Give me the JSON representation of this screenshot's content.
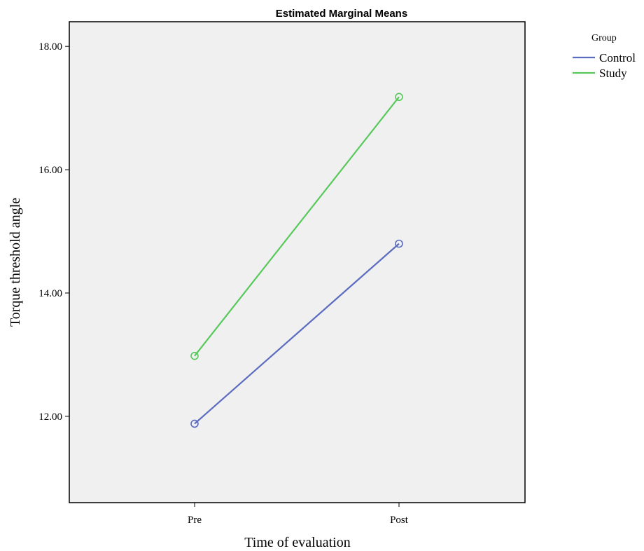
{
  "chart_data": {
    "type": "line",
    "title": "Estimated Marginal Means",
    "xlabel": "Time of evaluation",
    "ylabel": "Torque threshold angle",
    "categories": [
      "Pre",
      "Post"
    ],
    "ylim": [
      10.6,
      18.4
    ],
    "yticks": [
      12.0,
      14.0,
      16.0,
      18.0
    ],
    "ytick_labels": [
      "12.00",
      "14.00",
      "16.00",
      "18.00"
    ],
    "grid": false,
    "legend": {
      "title": "Group",
      "placement": "right"
    },
    "series": [
      {
        "name": "Control",
        "values": [
          11.88,
          14.8
        ],
        "color": "#5b6bbf"
      },
      {
        "name": "Study",
        "values": [
          12.98,
          17.18
        ],
        "color": "#56c95a"
      }
    ]
  }
}
